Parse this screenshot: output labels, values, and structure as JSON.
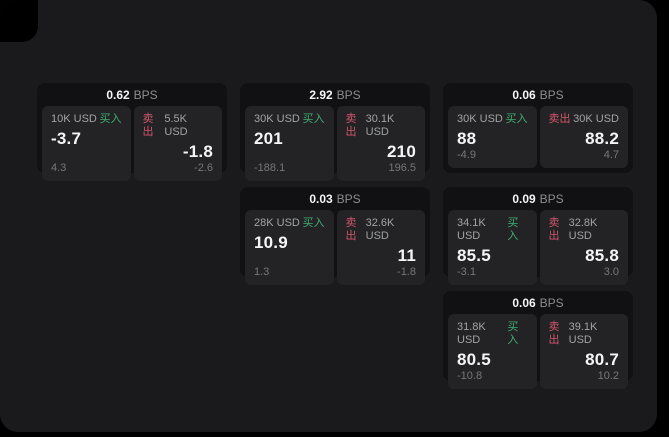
{
  "labels": {
    "bps_unit": "BPS",
    "buy": "买入",
    "sell": "卖出"
  },
  "colors": {
    "background": "#000000",
    "panel": "#1a1a1c",
    "card": "#111113",
    "subcard": "#232325",
    "buy_accent": "#3fae73",
    "sell_accent": "#d0566a",
    "primary_text": "#f5f5f7",
    "muted_text": "#a2a3a7",
    "faint_text": "#76777c"
  },
  "cards": [
    {
      "bps": "0.62",
      "buy": {
        "amount": "10K USD",
        "price": "-3.7",
        "delta": "4.3"
      },
      "sell": {
        "amount": "5.5K USD",
        "price": "-1.8",
        "delta": "-2.6"
      }
    },
    {
      "bps": "2.92",
      "buy": {
        "amount": "30K USD",
        "price": "201",
        "delta": "-188.1"
      },
      "sell": {
        "amount": "30.1K USD",
        "price": "210",
        "delta": "196.5"
      }
    },
    {
      "bps": "0.06",
      "buy": {
        "amount": "30K USD",
        "price": "88",
        "delta": "-4.9"
      },
      "sell": {
        "amount": "30K USD",
        "price": "88.2",
        "delta": "4.7"
      }
    },
    {
      "bps": "0.03",
      "buy": {
        "amount": "28K USD",
        "price": "10.9",
        "delta": "1.3"
      },
      "sell": {
        "amount": "32.6K USD",
        "price": "11",
        "delta": "-1.8"
      }
    },
    {
      "bps": "0.09",
      "buy": {
        "amount": "34.1K USD",
        "price": "85.5",
        "delta": "-3.1"
      },
      "sell": {
        "amount": "32.8K USD",
        "price": "85.8",
        "delta": "3.0"
      }
    },
    {
      "bps": "0.06",
      "buy": {
        "amount": "31.8K USD",
        "price": "80.5",
        "delta": "-10.8"
      },
      "sell": {
        "amount": "39.1K USD",
        "price": "80.7",
        "delta": "10.2"
      }
    }
  ]
}
